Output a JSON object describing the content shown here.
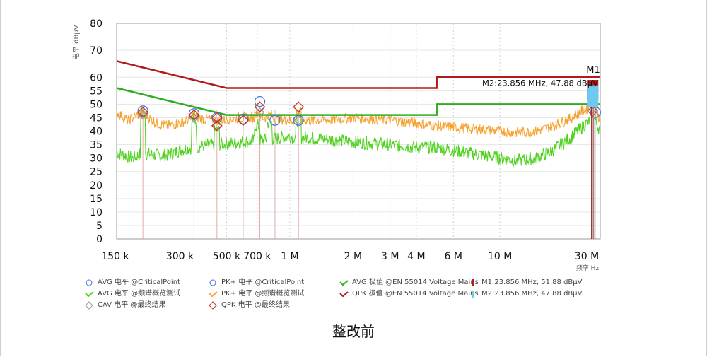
{
  "caption": "整改前",
  "chart_data": {
    "type": "line",
    "ylabel": "电平 dBμV",
    "xlabel": "频率 Hz",
    "x_scale": "log",
    "xlim_hz": [
      150000,
      30000000
    ],
    "ylim": [
      0,
      80
    ],
    "x_ticks": [
      {
        "hz": 150000,
        "label": "150 k"
      },
      {
        "hz": 300000,
        "label": "300 k"
      },
      {
        "hz": 500000,
        "label": "500 k"
      },
      {
        "hz": 700000,
        "label": "700 k"
      },
      {
        "hz": 1000000,
        "label": "1 M"
      },
      {
        "hz": 2000000,
        "label": "2 M"
      },
      {
        "hz": 3000000,
        "label": "3 M"
      },
      {
        "hz": 4000000,
        "label": "4 M"
      },
      {
        "hz": 6000000,
        "label": "6 M"
      },
      {
        "hz": 10000000,
        "label": "10 M"
      },
      {
        "hz": 30000000,
        "label": "30 M"
      }
    ],
    "y_ticks": [
      0,
      5,
      10,
      15,
      20,
      25,
      30,
      35,
      40,
      45,
      50,
      55,
      60,
      70,
      80
    ],
    "grid": true,
    "colors": {
      "qpk_limit": "#b01c1c",
      "avg_limit": "#2eae1e",
      "pk_scan": "#f5a12c",
      "avg_scan": "#4fd11e",
      "marker_m1": "#b01c1c",
      "marker_m2": "#6ec9f0",
      "pk_critical": "#3b6fd6",
      "qpk_final": "#c0392b",
      "cav_final": "#999999"
    },
    "limits": {
      "qpk_limit": [
        [
          0.15,
          66
        ],
        [
          0.5,
          56
        ],
        [
          5,
          56
        ],
        [
          5,
          60
        ],
        [
          30,
          60
        ]
      ],
      "avg_limit": [
        [
          0.15,
          56
        ],
        [
          0.5,
          46
        ],
        [
          5,
          46
        ],
        [
          5,
          50
        ],
        [
          30,
          50
        ]
      ]
    },
    "pk_scan_anchors_mhz": [
      [
        0.15,
        47
      ],
      [
        0.17,
        44
      ],
      [
        0.2,
        47
      ],
      [
        0.23,
        43
      ],
      [
        0.26,
        42
      ],
      [
        0.3,
        43
      ],
      [
        0.35,
        45
      ],
      [
        0.45,
        44
      ],
      [
        0.6,
        45
      ],
      [
        0.8,
        45
      ],
      [
        1,
        44
      ],
      [
        1.5,
        44
      ],
      [
        2,
        45
      ],
      [
        3,
        44
      ],
      [
        4,
        43
      ],
      [
        5,
        42
      ],
      [
        7,
        41
      ],
      [
        10,
        40
      ],
      [
        12,
        39.5
      ],
      [
        15,
        40
      ],
      [
        18,
        42
      ],
      [
        22,
        45
      ],
      [
        25,
        48
      ],
      [
        28,
        49
      ],
      [
        30,
        44
      ]
    ],
    "avg_scan_anchors_mhz": [
      [
        0.15,
        32
      ],
      [
        0.18,
        30
      ],
      [
        0.2,
        32
      ],
      [
        0.23,
        31
      ],
      [
        0.26,
        31
      ],
      [
        0.3,
        33
      ],
      [
        0.35,
        34
      ],
      [
        0.45,
        35
      ],
      [
        0.6,
        36
      ],
      [
        0.8,
        37
      ],
      [
        1,
        38
      ],
      [
        1.5,
        37
      ],
      [
        2,
        36
      ],
      [
        3,
        35
      ],
      [
        4,
        34
      ],
      [
        5,
        34
      ],
      [
        7,
        32
      ],
      [
        10,
        30
      ],
      [
        12,
        29
      ],
      [
        15,
        30
      ],
      [
        18,
        33
      ],
      [
        22,
        38
      ],
      [
        25,
        42
      ],
      [
        28,
        45
      ],
      [
        30,
        40
      ]
    ],
    "scan_spikes_mhz": [
      [
        0.2,
        47,
        47
      ],
      [
        0.35,
        46,
        44
      ],
      [
        0.45,
        44,
        40
      ],
      [
        0.7,
        47,
        42
      ],
      [
        0.8,
        46,
        43
      ],
      [
        1.1,
        47,
        44
      ],
      [
        27.6,
        55,
        52
      ]
    ],
    "pk_critical_points": [
      [
        0.2,
        47.5
      ],
      [
        0.35,
        46.5
      ],
      [
        0.45,
        45
      ],
      [
        0.6,
        44.5
      ],
      [
        0.72,
        51
      ],
      [
        0.85,
        44
      ],
      [
        1.1,
        44
      ],
      [
        27.5,
        55
      ],
      [
        28.5,
        47
      ]
    ],
    "qpk_final": [
      [
        0.2,
        47
      ],
      [
        0.35,
        46
      ],
      [
        0.45,
        45
      ],
      [
        0.45,
        42
      ],
      [
        0.6,
        44
      ],
      [
        0.72,
        49
      ],
      [
        1.1,
        49
      ],
      [
        27.6,
        47.5
      ]
    ],
    "cav_final": [
      [
        0.2,
        46
      ],
      [
        0.35,
        45
      ],
      [
        0.45,
        42
      ],
      [
        0.72,
        47
      ],
      [
        1.1,
        44
      ],
      [
        28.3,
        46
      ]
    ],
    "verticals_mhz": [
      0.2,
      0.35,
      0.45,
      0.6,
      0.72,
      0.85,
      1.1
    ],
    "markers": [
      {
        "id": "M1",
        "mhz": 23.856,
        "dbuv": 51.88,
        "label": "M1"
      },
      {
        "id": "M2",
        "mhz": 23.856,
        "dbuv": 47.88,
        "label": "M2:23.856 MHz, 47.88 dBμV"
      }
    ]
  },
  "legend": {
    "col1": [
      {
        "symbol": "circle",
        "color": "#3b6fd6",
        "text": "AVG 电平 @CriticalPoint"
      },
      {
        "symbol": "line",
        "color": "#4fd11e",
        "text": "AVG 电平 @频谱概览测试"
      },
      {
        "symbol": "diamond",
        "color": "#999999",
        "text": "CAV 电平 @最终结果"
      }
    ],
    "col2": [
      {
        "symbol": "circle",
        "color": "#3b6fd6",
        "text": "PK+ 电平 @CriticalPoint"
      },
      {
        "symbol": "line",
        "color": "#f5a12c",
        "text": "PK+ 电平 @频谱概览测试"
      },
      {
        "symbol": "diamond",
        "color": "#c0392b",
        "text": "QPK 电平 @最终结果"
      }
    ],
    "col3": [
      {
        "symbol": "line",
        "color": "#2eae1e",
        "text": "AVG 极值 @EN 55014 Voltage Mains"
      },
      {
        "symbol": "line",
        "color": "#b01c1c",
        "text": "QPK 极值 @EN 55014 Voltage Mains"
      }
    ],
    "col4": [
      {
        "symbol": "bar",
        "color": "#b01c1c",
        "text": "M1:23.856 MHz, 51.88 dBμV"
      },
      {
        "symbol": "bar",
        "color": "#6ec9f0",
        "text": "M2:23.856 MHz, 47.88 dBμV"
      }
    ]
  }
}
